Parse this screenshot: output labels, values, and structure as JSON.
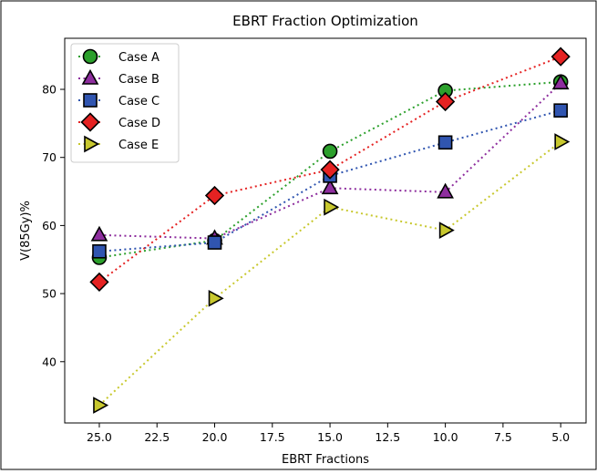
{
  "chart_data": {
    "type": "line",
    "title": "EBRT Fraction Optimization",
    "xlabel": "EBRT Fractions",
    "ylabel": "V(85Gy)%",
    "x_inverted": true,
    "xlim": [
      26.5,
      3.9
    ],
    "ylim": [
      31,
      87.5
    ],
    "xticks": [
      "25.0",
      "22.5",
      "20.0",
      "17.5",
      "15.0",
      "12.5",
      "10.0",
      "7.5",
      "5.0"
    ],
    "xtick_values": [
      25,
      22.5,
      20,
      17.5,
      15,
      12.5,
      10,
      7.5,
      5
    ],
    "yticks": [
      "40",
      "50",
      "60",
      "70",
      "80"
    ],
    "ytick_values": [
      40,
      50,
      60,
      70,
      80
    ],
    "grid": false,
    "legend_position": "top-left",
    "x": [
      25,
      20,
      15,
      10,
      5
    ],
    "series": [
      {
        "name": "Case A",
        "values": [
          55.3,
          57.8,
          70.9,
          79.8,
          81.1
        ],
        "color": "#2ca02c",
        "marker": "circle"
      },
      {
        "name": "Case B",
        "values": [
          58.6,
          58.1,
          65.5,
          64.9,
          80.9
        ],
        "color": "#8e2e9e",
        "marker": "triangle-up"
      },
      {
        "name": "Case C",
        "values": [
          56.2,
          57.5,
          67.3,
          72.2,
          76.9
        ],
        "color": "#3055b0",
        "marker": "square"
      },
      {
        "name": "Case D",
        "values": [
          51.7,
          64.4,
          68.2,
          78.2,
          84.8
        ],
        "color": "#e52222",
        "marker": "diamond"
      },
      {
        "name": "Case E",
        "values": [
          33.6,
          49.3,
          62.7,
          59.3,
          72.3
        ],
        "color": "#c8c82e",
        "marker": "triangle-right"
      }
    ]
  }
}
